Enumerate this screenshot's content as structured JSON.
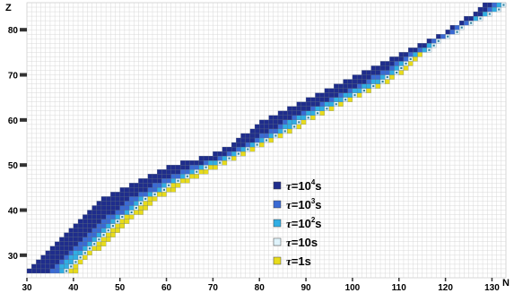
{
  "chart_data": {
    "type": "heatmap",
    "xlabel": "N",
    "ylabel": "Z",
    "xlim": [
      30,
      133
    ],
    "ylim": [
      25,
      86
    ],
    "x_ticks": [
      30,
      40,
      50,
      60,
      70,
      80,
      90,
      100,
      110,
      120,
      130
    ],
    "y_ticks": [
      30,
      40,
      50,
      60,
      70,
      80
    ],
    "grid": true,
    "legend_position": "center-right",
    "colors": {
      "t1e4": "#1f2d8c",
      "t1e3": "#3a6ad4",
      "t1e2": "#31aee4",
      "t10": "#dff3fb",
      "t1": "#e8dc1c",
      "grid": "#d8d8d8",
      "tick": "#333333"
    },
    "legend": [
      {
        "key": "t1e4",
        "prefix": "τ",
        "eq": "=10",
        "sup": "4",
        "unit": "s"
      },
      {
        "key": "t1e3",
        "prefix": "τ",
        "eq": "=10",
        "sup": "3",
        "unit": "s"
      },
      {
        "key": "t1e2",
        "prefix": "τ",
        "eq": "=10",
        "sup": "2",
        "unit": "s"
      },
      {
        "key": "t10",
        "prefix": "τ",
        "eq": "=10",
        "sup": "",
        "unit": "s"
      },
      {
        "key": "t1",
        "prefix": "τ",
        "eq": "=1",
        "sup": "",
        "unit": "s"
      }
    ],
    "band": [
      {
        "z": 26,
        "n0": 30,
        "n1": 40
      },
      {
        "z": 27,
        "n0": 31,
        "n1": 40
      },
      {
        "z": 28,
        "n0": 32,
        "n1": 41
      },
      {
        "z": 29,
        "n0": 33,
        "n1": 42
      },
      {
        "z": 30,
        "n0": 34,
        "n1": 43
      },
      {
        "z": 31,
        "n0": 35,
        "n1": 45
      },
      {
        "z": 32,
        "n0": 36,
        "n1": 46
      },
      {
        "z": 33,
        "n0": 37,
        "n1": 47
      },
      {
        "z": 34,
        "n0": 38,
        "n1": 48
      },
      {
        "z": 35,
        "n0": 39,
        "n1": 49
      },
      {
        "z": 36,
        "n0": 40,
        "n1": 50
      },
      {
        "z": 37,
        "n0": 41,
        "n1": 51
      },
      {
        "z": 38,
        "n0": 42,
        "n1": 52
      },
      {
        "z": 39,
        "n0": 43,
        "n1": 54
      },
      {
        "z": 40,
        "n0": 44,
        "n1": 55
      },
      {
        "z": 41,
        "n0": 45,
        "n1": 56
      },
      {
        "z": 42,
        "n0": 46,
        "n1": 57
      },
      {
        "z": 43,
        "n0": 48,
        "n1": 59
      },
      {
        "z": 44,
        "n0": 50,
        "n1": 61
      },
      {
        "z": 45,
        "n0": 52,
        "n1": 62
      },
      {
        "z": 46,
        "n0": 54,
        "n1": 64
      },
      {
        "z": 47,
        "n0": 56,
        "n1": 66
      },
      {
        "z": 48,
        "n0": 58,
        "n1": 68
      },
      {
        "z": 49,
        "n0": 60,
        "n1": 70
      },
      {
        "z": 50,
        "n0": 63,
        "n1": 72
      },
      {
        "z": 51,
        "n0": 67,
        "n1": 74
      },
      {
        "z": 52,
        "n0": 70,
        "n1": 76
      },
      {
        "z": 53,
        "n0": 72,
        "n1": 78
      },
      {
        "z": 54,
        "n0": 74,
        "n1": 80
      },
      {
        "z": 55,
        "n0": 75,
        "n1": 82
      },
      {
        "z": 56,
        "n0": 76,
        "n1": 84
      },
      {
        "z": 57,
        "n0": 78,
        "n1": 86
      },
      {
        "z": 58,
        "n0": 79,
        "n1": 88
      },
      {
        "z": 59,
        "n0": 80,
        "n1": 89
      },
      {
        "z": 60,
        "n0": 82,
        "n1": 91
      },
      {
        "z": 61,
        "n0": 84,
        "n1": 93
      },
      {
        "z": 62,
        "n0": 86,
        "n1": 95
      },
      {
        "z": 63,
        "n0": 88,
        "n1": 97
      },
      {
        "z": 64,
        "n0": 90,
        "n1": 99
      },
      {
        "z": 65,
        "n0": 92,
        "n1": 101
      },
      {
        "z": 66,
        "n0": 94,
        "n1": 103
      },
      {
        "z": 67,
        "n0": 96,
        "n1": 105
      },
      {
        "z": 68,
        "n0": 98,
        "n1": 107
      },
      {
        "z": 69,
        "n0": 100,
        "n1": 108
      },
      {
        "z": 70,
        "n0": 102,
        "n1": 110
      },
      {
        "z": 71,
        "n0": 104,
        "n1": 111
      },
      {
        "z": 72,
        "n0": 106,
        "n1": 112
      },
      {
        "z": 73,
        "n0": 108,
        "n1": 113
      },
      {
        "z": 74,
        "n0": 110,
        "n1": 114
      },
      {
        "z": 75,
        "n0": 112,
        "n1": 116
      },
      {
        "z": 76,
        "n0": 114,
        "n1": 117
      },
      {
        "z": 77,
        "n0": 116,
        "n1": 118
      },
      {
        "z": 78,
        "n0": 118,
        "n1": 120
      },
      {
        "z": 79,
        "n0": 120,
        "n1": 122
      },
      {
        "z": 80,
        "n0": 121,
        "n1": 123
      },
      {
        "z": 81,
        "n0": 123,
        "n1": 125
      },
      {
        "z": 82,
        "n0": 124,
        "n1": 127
      },
      {
        "z": 83,
        "n0": 126,
        "n1": 129
      },
      {
        "z": 84,
        "n0": 127,
        "n1": 131
      },
      {
        "z": 85,
        "n0": 128,
        "n1": 132
      }
    ]
  }
}
